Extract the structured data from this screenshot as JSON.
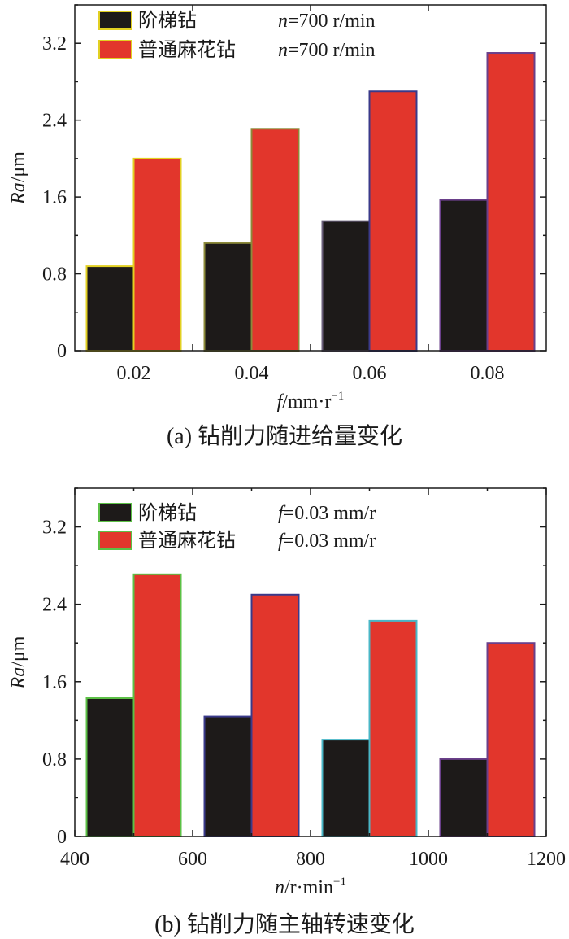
{
  "chart_data": [
    {
      "type": "bar",
      "categories": [
        "0.02",
        "0.04",
        "0.06",
        "0.08"
      ],
      "series": [
        {
          "name": "阶梯钻",
          "legend_var": "n",
          "legend_value": "=700 r/min",
          "values": [
            0.88,
            1.12,
            1.35,
            1.57
          ],
          "color": "#1d1a19",
          "outlines": [
            "#e2d022",
            "#8c8a3a",
            "#6a5f7a",
            "#6a3f8a"
          ]
        },
        {
          "name": "普通麻花钻",
          "legend_var": "n",
          "legend_value": "=700 r/min",
          "values": [
            2.0,
            2.31,
            2.7,
            3.1
          ],
          "color": "#e2362c",
          "outlines": [
            "#e2d022",
            "#8c8a3a",
            "#3a3a8a",
            "#6a3f8a"
          ]
        }
      ],
      "xlabel_var": "f",
      "xlabel_unit": "/mm·r",
      "xlabel_sup": "−1",
      "ylabel_var": "Ra",
      "ylabel_unit": "/μm",
      "ylim": [
        0,
        3.6
      ],
      "yticks": [
        "0",
        "0.8",
        "1.6",
        "2.4",
        "3.2"
      ],
      "caption": "(a)  钻削力随进给量变化",
      "legend_position": "top-left"
    },
    {
      "type": "bar",
      "x_positions": [
        500,
        700,
        900,
        1100
      ],
      "series": [
        {
          "name": "阶梯钻",
          "legend_var": "f",
          "legend_value": "=0.03 mm/r",
          "values": [
            1.43,
            1.24,
            1.0,
            0.8
          ],
          "color": "#1d1a19",
          "outlines": [
            "#5cc046",
            "#3a3a8a",
            "#49b7c7",
            "#6a3f8a"
          ]
        },
        {
          "name": "普通麻花钻",
          "legend_var": "f",
          "legend_value": "=0.03 mm/r",
          "values": [
            2.71,
            2.5,
            2.23,
            2.0
          ],
          "color": "#e2362c",
          "outlines": [
            "#5cc046",
            "#3a3a8a",
            "#49b7c7",
            "#6a3f8a"
          ]
        }
      ],
      "xlabel_var": "n",
      "xlabel_unit": "/r·min",
      "xlabel_sup": "−1",
      "ylabel_var": "Ra",
      "ylabel_unit": "/μm",
      "xlim": [
        400,
        1200
      ],
      "xticks": [
        "400",
        "600",
        "800",
        "1000",
        "1200"
      ],
      "ylim": [
        0,
        3.6
      ],
      "yticks": [
        "0",
        "0.8",
        "1.6",
        "2.4",
        "3.2"
      ],
      "caption": "(b)  钻削力随主轴转速变化",
      "legend_position": "top-left"
    }
  ]
}
